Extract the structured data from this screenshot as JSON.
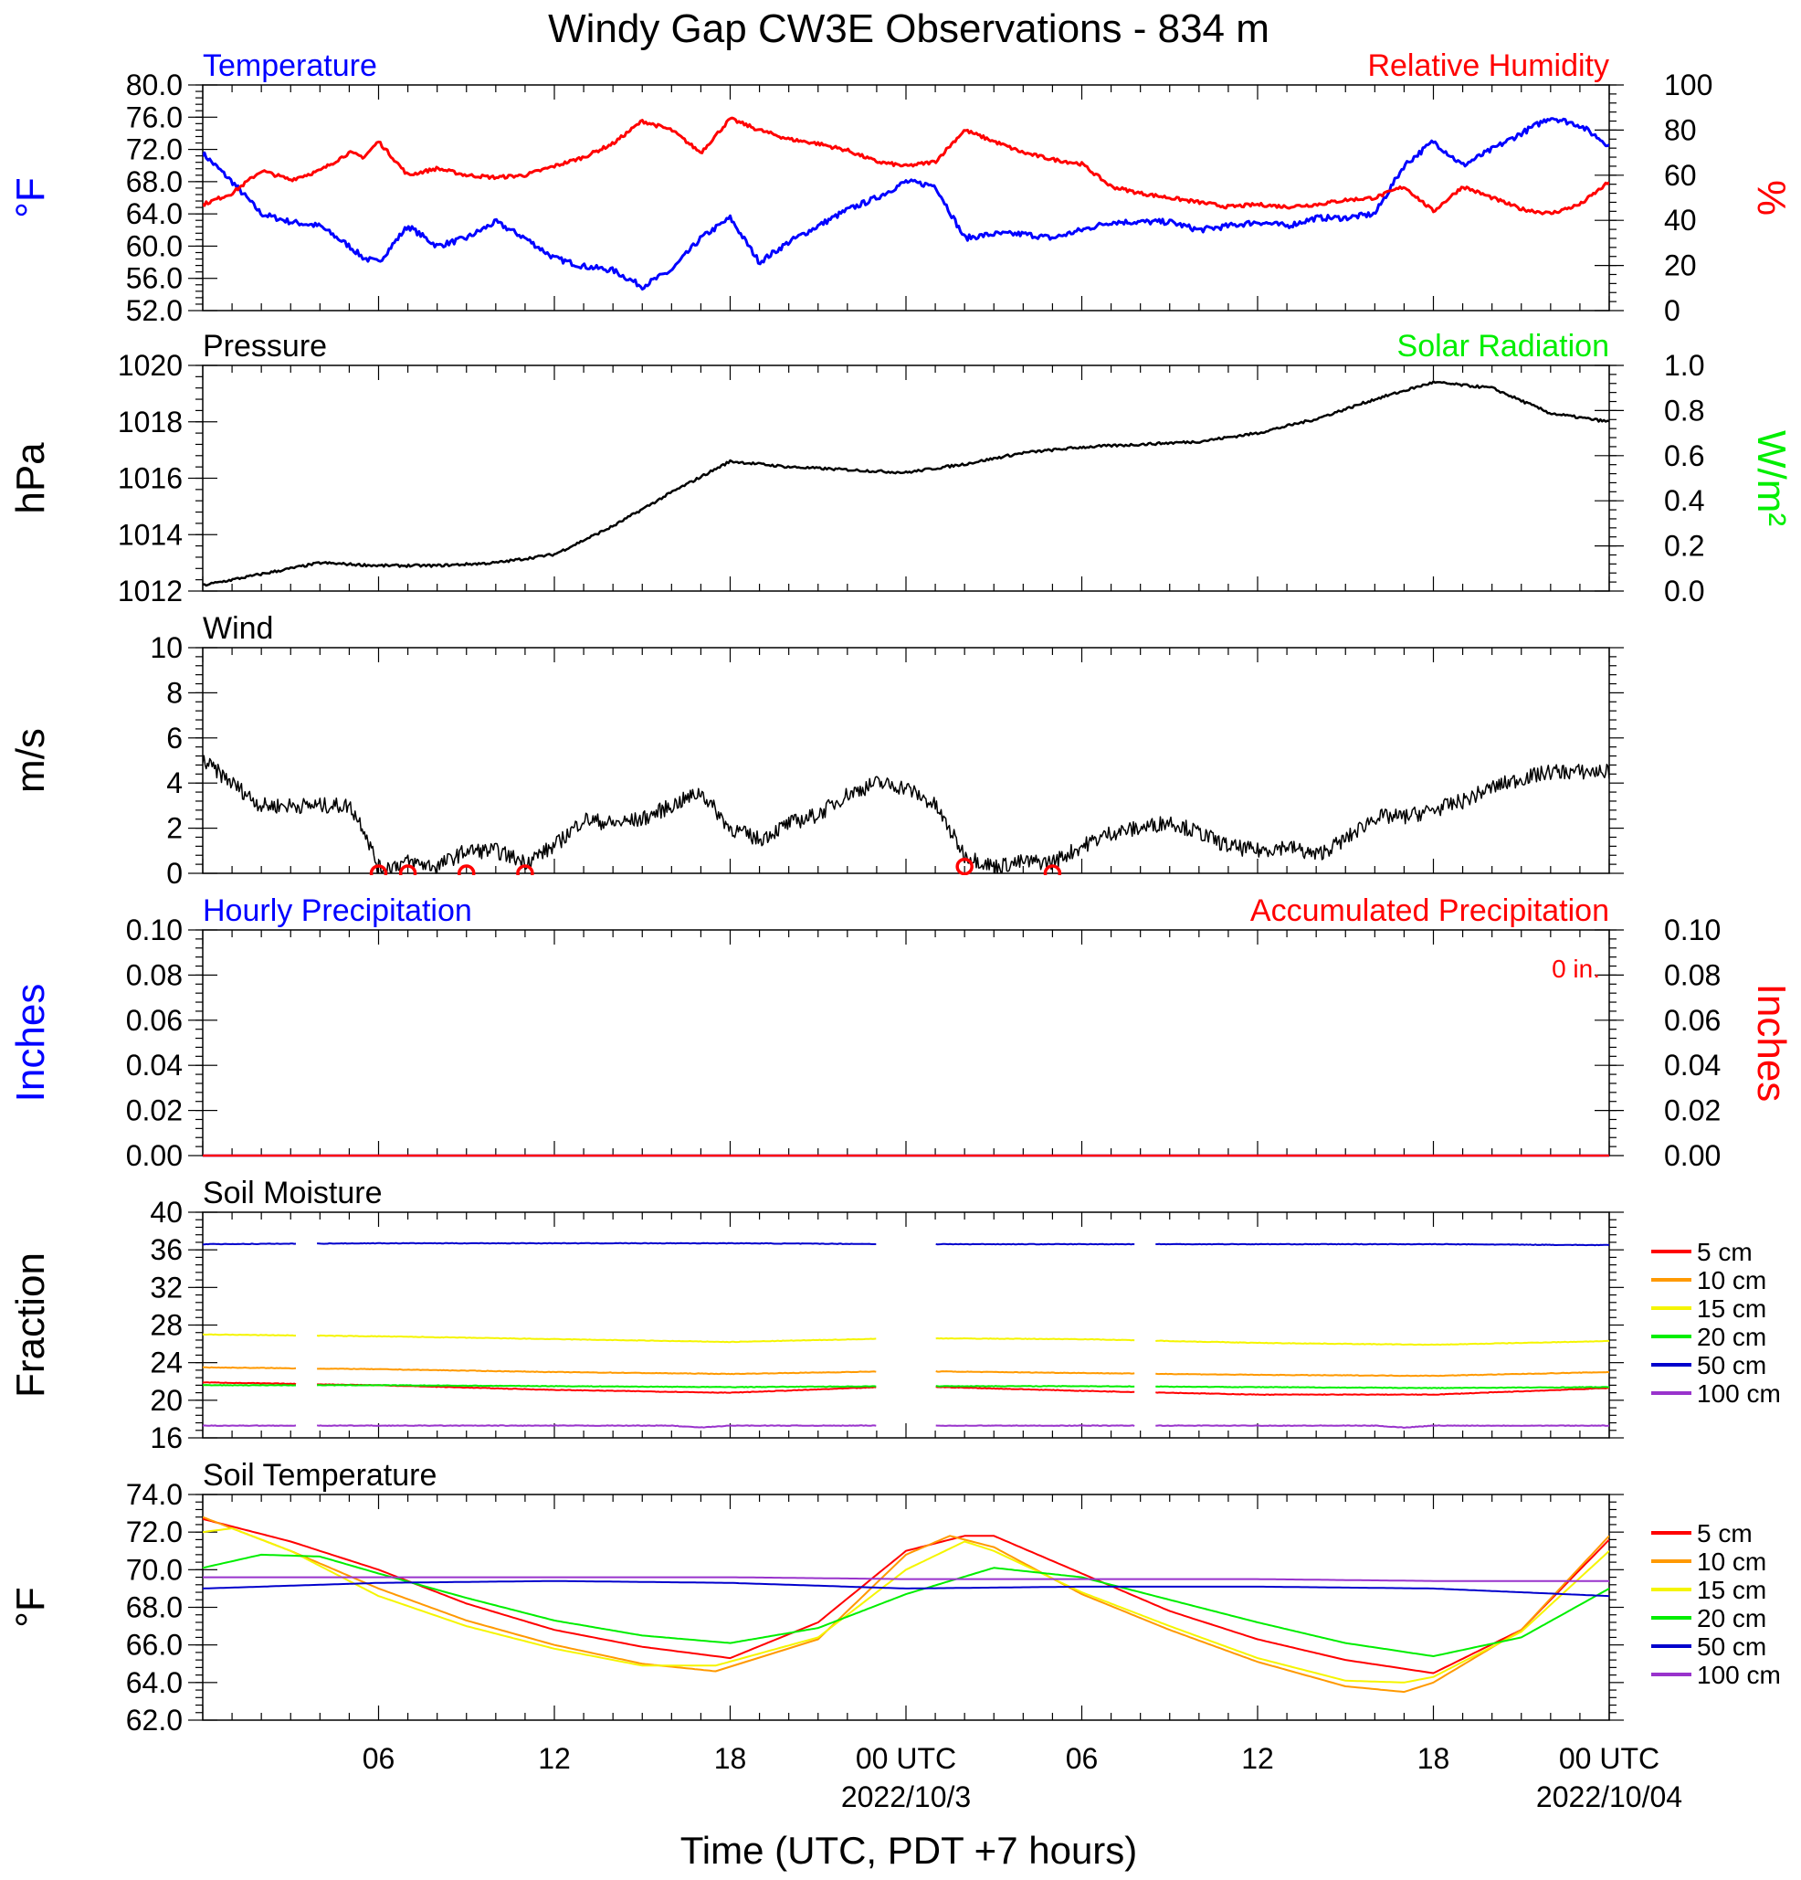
{
  "title": "Windy Gap CW3E Observations - 834 m",
  "xaxis": {
    "label": "Time (UTC, PDT +7 hours)",
    "range_hours": [
      0,
      48
    ],
    "tick_labels": [
      {
        "hour": 6,
        "text": "06"
      },
      {
        "hour": 12,
        "text": "12"
      },
      {
        "hour": 18,
        "text": "18"
      },
      {
        "hour": 24,
        "text": "00 UTC",
        "sub": "2022/10/3"
      },
      {
        "hour": 30,
        "text": "06"
      },
      {
        "hour": 36,
        "text": "12"
      },
      {
        "hour": 42,
        "text": "18"
      },
      {
        "hour": 48,
        "text": "00 UTC",
        "sub": "2022/10/04"
      }
    ]
  },
  "colors": {
    "blue": "#0000ff",
    "red": "#ff0000",
    "green": "#00ee00",
    "black": "#000000",
    "orange": "#ff9900",
    "yellow": "#f5f500",
    "purple": "#9933cc"
  },
  "chart_data": [
    {
      "id": "temp_rh",
      "type": "line",
      "title_left": "Temperature",
      "title_right": "Relative Humidity",
      "ylabel_left": "°F",
      "ylabel_right": "%",
      "ylim_left": [
        52,
        80
      ],
      "ylim_right": [
        0,
        100
      ],
      "yticks_left": [
        "52.0",
        "56.0",
        "60.0",
        "64.0",
        "68.0",
        "72.0",
        "76.0",
        "80.0"
      ],
      "yticks_right": [
        "0",
        "20",
        "40",
        "60",
        "80",
        "100"
      ],
      "series": [
        {
          "name": "Temperature",
          "axis": "left",
          "color": "#0000ff",
          "x": [
            0,
            1,
            2,
            3,
            4,
            5,
            5.5,
            6,
            7,
            8,
            9,
            10,
            11,
            12,
            13,
            14,
            15,
            16,
            17,
            18,
            19,
            20,
            21,
            22,
            23,
            24,
            25,
            26,
            27,
            28,
            29,
            30,
            31,
            32,
            33,
            34,
            35,
            36,
            37,
            38,
            39,
            40,
            41,
            42,
            43,
            44,
            45,
            46,
            47,
            48
          ],
          "y": [
            71.5,
            68,
            64,
            63,
            62.5,
            60,
            58.5,
            58,
            62.5,
            60,
            61,
            63,
            61,
            58.5,
            57.5,
            57,
            55,
            57,
            61,
            63.5,
            58,
            60.5,
            62.5,
            64.5,
            66,
            68,
            67.5,
            61,
            61.5,
            61.5,
            61,
            62,
            63,
            63,
            63,
            62,
            62.5,
            63,
            62.5,
            63.5,
            63.5,
            64,
            70,
            73,
            70,
            72,
            74,
            76,
            75,
            72.5
          ]
        },
        {
          "name": "Relative Humidity",
          "axis": "right",
          "color": "#ff0000",
          "x": [
            0,
            1,
            2,
            3,
            4,
            5,
            5.5,
            6,
            7,
            8,
            9,
            10,
            11,
            12,
            13,
            14,
            15,
            16,
            17,
            18,
            19,
            20,
            21,
            22,
            23,
            24,
            25,
            26,
            27,
            28,
            29,
            30,
            31,
            32,
            33,
            34,
            35,
            36,
            37,
            38,
            39,
            40,
            41,
            42,
            43,
            44,
            45,
            46,
            47,
            48
          ],
          "y": [
            47,
            52,
            62,
            58,
            62,
            70,
            68,
            75,
            60,
            63,
            60,
            59,
            60,
            64,
            68,
            74,
            84,
            80,
            70,
            85,
            80,
            76,
            74,
            71,
            66,
            64,
            66,
            80,
            75,
            70,
            67,
            65,
            55,
            52,
            50,
            48,
            46,
            47,
            46,
            47,
            49,
            50,
            55,
            44,
            55,
            50,
            45,
            43,
            47,
            57
          ]
        }
      ]
    },
    {
      "id": "pressure",
      "type": "line",
      "title_left": "Pressure",
      "title_right": "Solar Radiation",
      "ylabel_left": "hPa",
      "ylabel_right": "W/m²",
      "ylim_left": [
        1012,
        1020
      ],
      "ylim_right": [
        0,
        1.0
      ],
      "yticks_left": [
        "1012",
        "1014",
        "1016",
        "1018",
        "1020"
      ],
      "yticks_right": [
        "0.0",
        "0.2",
        "0.4",
        "0.6",
        "0.8",
        "1.0"
      ],
      "series": [
        {
          "name": "Pressure",
          "axis": "left",
          "color": "#000000",
          "x": [
            0,
            2,
            4,
            6,
            8,
            10,
            12,
            14,
            16,
            18,
            20,
            22,
            24,
            26,
            28,
            30,
            32,
            34,
            36,
            38,
            40,
            42,
            44,
            46,
            48
          ],
          "y": [
            1012.2,
            1012.6,
            1013,
            1012.9,
            1012.9,
            1013,
            1013.3,
            1014.3,
            1015.5,
            1016.6,
            1016.4,
            1016.3,
            1016.2,
            1016.5,
            1016.9,
            1017.1,
            1017.2,
            1017.3,
            1017.6,
            1018.1,
            1018.8,
            1019.4,
            1019.2,
            1018.3,
            1018
          ]
        }
      ]
    },
    {
      "id": "wind",
      "type": "line",
      "title_left": "Wind",
      "ylabel_left": "m/s",
      "ylim_left": [
        0,
        10
      ],
      "yticks_left": [
        "0",
        "2",
        "4",
        "6",
        "8",
        "10"
      ],
      "series": [
        {
          "name": "Wind speed",
          "axis": "left",
          "color": "#000000",
          "x": [
            0,
            1,
            2,
            3,
            4,
            5,
            5.5,
            6,
            7,
            8,
            9,
            10,
            11,
            12,
            13,
            14,
            15,
            16,
            17,
            18,
            19,
            20,
            21,
            22,
            23,
            24,
            25,
            26,
            27,
            28,
            29,
            30,
            31,
            32,
            33,
            34,
            35,
            36,
            37,
            38,
            39,
            40,
            41,
            42,
            43,
            44,
            45,
            46,
            47,
            48
          ],
          "y": [
            5,
            4,
            3,
            3,
            3,
            3,
            2,
            0.2,
            0.5,
            0.3,
            1,
            1,
            0.5,
            1.2,
            2.4,
            2.2,
            2.4,
            3,
            3.6,
            2,
            1.5,
            2.2,
            2.6,
            3.5,
            4,
            3.8,
            3,
            0.8,
            0.3,
            0.5,
            0.5,
            1.2,
            1.8,
            2,
            2.3,
            1.8,
            1.2,
            1,
            1.2,
            0.8,
            1.5,
            2.5,
            2.5,
            2.8,
            3.2,
            3.8,
            4.2,
            4.5,
            4.5,
            4.5
          ]
        },
        {
          "name": "Calm",
          "axis": "left",
          "color": "#ff0000",
          "marker": "circle",
          "x": [
            6,
            7,
            9,
            11,
            26,
            29
          ],
          "y": [
            0,
            0,
            0,
            0,
            0.3,
            0
          ]
        }
      ]
    },
    {
      "id": "precip",
      "type": "line",
      "title_left": "Hourly Precipitation",
      "title_right": "Accumulated Precipitation",
      "annotation": "0 in.",
      "ylabel_left": "Inches",
      "ylabel_right": "Inches",
      "ylim_left": [
        0,
        0.1
      ],
      "ylim_right": [
        0,
        0.1
      ],
      "yticks_left": [
        "0.00",
        "0.02",
        "0.04",
        "0.06",
        "0.08",
        "0.10"
      ],
      "yticks_right": [
        "0.00",
        "0.02",
        "0.04",
        "0.06",
        "0.08",
        "0.10"
      ],
      "series": [
        {
          "name": "Hourly Precipitation",
          "axis": "left",
          "color": "#0000ff",
          "x": [
            0,
            48
          ],
          "y": [
            0,
            0
          ]
        },
        {
          "name": "Accumulated Precipitation",
          "axis": "right",
          "color": "#ff0000",
          "x": [
            0,
            48
          ],
          "y": [
            0,
            0
          ]
        }
      ]
    },
    {
      "id": "soil_moisture",
      "type": "line",
      "title_left": "Soil Moisture",
      "ylabel_left": "Fraction",
      "ylim_left": [
        16,
        40
      ],
      "yticks_left": [
        "16",
        "20",
        "24",
        "28",
        "32",
        "36",
        "40"
      ],
      "gaps_hours": [
        [
          3.2,
          3.9
        ],
        [
          23.0,
          25.0
        ],
        [
          31.8,
          32.5
        ]
      ],
      "series": [
        {
          "name": "5 cm",
          "color": "#ff0000",
          "x": [
            0,
            6,
            12,
            18,
            24,
            30,
            36,
            42,
            48
          ],
          "y": [
            21.9,
            21.6,
            21.1,
            20.8,
            21.5,
            21.0,
            20.6,
            20.6,
            21.3
          ]
        },
        {
          "name": "10 cm",
          "color": "#ff9900",
          "x": [
            0,
            6,
            12,
            18,
            24,
            30,
            36,
            42,
            48
          ],
          "y": [
            23.5,
            23.3,
            23.0,
            22.8,
            23.1,
            22.9,
            22.7,
            22.6,
            23.0
          ]
        },
        {
          "name": "15 cm",
          "color": "#f5f500",
          "x": [
            0,
            6,
            12,
            18,
            24,
            30,
            36,
            42,
            48
          ],
          "y": [
            27.0,
            26.8,
            26.5,
            26.2,
            26.6,
            26.5,
            26.1,
            25.9,
            26.3
          ]
        },
        {
          "name": "20 cm",
          "color": "#00ee00",
          "x": [
            0,
            6,
            12,
            18,
            24,
            30,
            36,
            42,
            48
          ],
          "y": [
            21.6,
            21.6,
            21.5,
            21.4,
            21.5,
            21.5,
            21.4,
            21.3,
            21.4
          ]
        },
        {
          "name": "50 cm",
          "color": "#0000cc",
          "x": [
            0,
            6,
            12,
            18,
            24,
            30,
            36,
            42,
            48
          ],
          "y": [
            36.6,
            36.7,
            36.7,
            36.7,
            36.6,
            36.6,
            36.6,
            36.6,
            36.5
          ]
        },
        {
          "name": "100 cm",
          "color": "#9933cc",
          "x": [
            0,
            6,
            12,
            16,
            17,
            18,
            24,
            36,
            40,
            41,
            42,
            48
          ],
          "y": [
            17.3,
            17.3,
            17.3,
            17.3,
            17.1,
            17.3,
            17.3,
            17.3,
            17.3,
            17.1,
            17.3,
            17.3
          ]
        }
      ]
    },
    {
      "id": "soil_temp",
      "type": "line",
      "title_left": "Soil Temperature",
      "ylabel_left": "°F",
      "ylim_left": [
        62,
        74
      ],
      "yticks_left": [
        "62.0",
        "64.0",
        "66.0",
        "68.0",
        "70.0",
        "72.0",
        "74.0"
      ],
      "series": [
        {
          "name": "5 cm",
          "color": "#ff0000",
          "x": [
            0,
            3,
            6,
            9,
            12,
            15,
            18,
            21,
            24,
            26,
            27,
            30,
            33,
            36,
            39,
            42,
            45,
            48
          ],
          "y": [
            72.7,
            71.5,
            70,
            68.2,
            66.8,
            65.9,
            65.3,
            67.2,
            71,
            71.8,
            71.8,
            69.8,
            67.8,
            66.3,
            65.2,
            64.5,
            66.8,
            71.6
          ]
        },
        {
          "name": "10 cm",
          "color": "#ff9900",
          "x": [
            0,
            3,
            6,
            9,
            12,
            15,
            17.5,
            21,
            24,
            25.5,
            27,
            30,
            33,
            36,
            39,
            41,
            42,
            45,
            48
          ],
          "y": [
            72.8,
            71,
            69,
            67.3,
            66,
            65,
            64.6,
            66.3,
            70.8,
            71.8,
            71.2,
            68.7,
            66.8,
            65.1,
            63.8,
            63.5,
            64,
            66.8,
            71.8
          ]
        },
        {
          "name": "15 cm",
          "color": "#f5f500",
          "x": [
            0,
            1,
            3,
            6,
            9,
            12,
            15,
            17.5,
            21,
            24,
            26,
            27,
            30,
            33,
            36,
            39,
            41,
            42,
            45,
            48
          ],
          "y": [
            72,
            72.2,
            71,
            68.6,
            67,
            65.8,
            64.9,
            64.9,
            66.4,
            70,
            71.5,
            71,
            68.8,
            67,
            65.3,
            64.1,
            64,
            64.3,
            66.7,
            71
          ]
        },
        {
          "name": "20 cm",
          "color": "#00ee00",
          "x": [
            0,
            2,
            4,
            6,
            9,
            12,
            15,
            18,
            21,
            24,
            27,
            30,
            33,
            36,
            39,
            42,
            45,
            48
          ],
          "y": [
            70.1,
            70.8,
            70.7,
            69.8,
            68.5,
            67.3,
            66.5,
            66.1,
            66.9,
            68.7,
            70.1,
            69.6,
            68.4,
            67.2,
            66.1,
            65.4,
            66.4,
            69.0
          ]
        },
        {
          "name": "50 cm",
          "color": "#0000cc",
          "x": [
            0,
            6,
            12,
            18,
            24,
            30,
            36,
            42,
            48
          ],
          "y": [
            69.0,
            69.3,
            69.4,
            69.3,
            69.0,
            69.1,
            69.1,
            69.0,
            68.6
          ]
        },
        {
          "name": "100 cm",
          "color": "#9933cc",
          "x": [
            0,
            6,
            12,
            18,
            24,
            30,
            36,
            42,
            48
          ],
          "y": [
            69.6,
            69.6,
            69.6,
            69.6,
            69.5,
            69.5,
            69.5,
            69.4,
            69.4
          ]
        }
      ]
    }
  ]
}
